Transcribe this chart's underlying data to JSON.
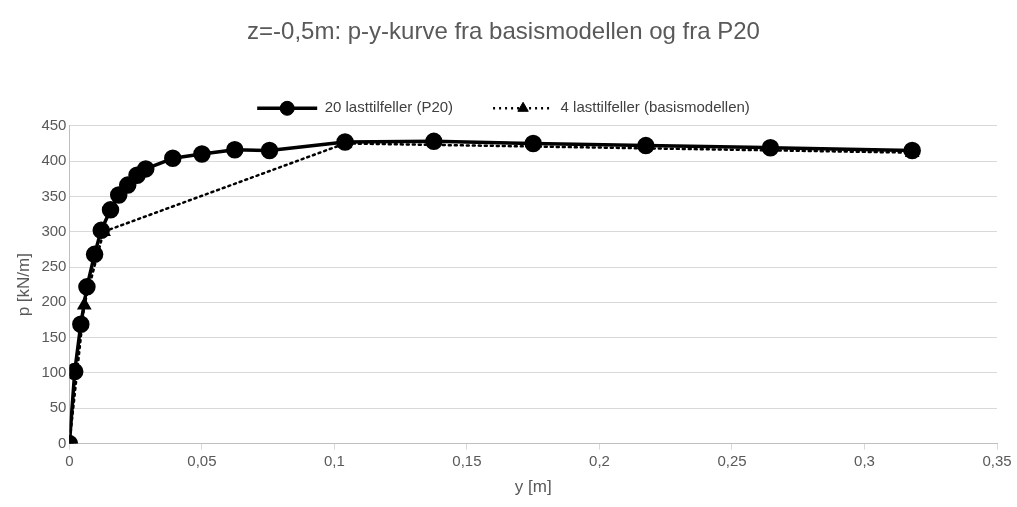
{
  "chart_data": {
    "type": "line",
    "title": "z=-0,5m: p-y-kurve fra basismodellen og fra P20",
    "xlabel": "y [m]",
    "ylabel": "p [kN/m]",
    "xlim": [
      0,
      0.35
    ],
    "xticks": [
      {
        "value": 0,
        "label": "0"
      },
      {
        "value": 0.05,
        "label": "0,05"
      },
      {
        "value": 0.1,
        "label": "0,1"
      },
      {
        "value": 0.15,
        "label": "0,15"
      },
      {
        "value": 0.2,
        "label": "0,2"
      },
      {
        "value": 0.25,
        "label": "0,25"
      },
      {
        "value": 0.3,
        "label": "0,3"
      },
      {
        "value": 0.35,
        "label": "0,35"
      }
    ],
    "ylim": [
      0,
      450
    ],
    "yticks": [
      0,
      50,
      100,
      150,
      200,
      250,
      300,
      350,
      400,
      450
    ],
    "grid": "y",
    "legend": "top",
    "series": [
      {
        "name": "20 lasttilfeller (P20)",
        "color": "#000000",
        "marker": "circle",
        "line_style": "solid",
        "x": [
          0,
          0.002,
          0.0043,
          0.0066,
          0.0095,
          0.012,
          0.0155,
          0.0186,
          0.022,
          0.0255,
          0.0288,
          0.039,
          0.05,
          0.0624,
          0.0755,
          0.104,
          0.1375,
          0.175,
          0.2175,
          0.2645,
          0.318
        ],
        "values": [
          0,
          102,
          169,
          222,
          268,
          302,
          331,
          352,
          366,
          380,
          389,
          404,
          410,
          416,
          415,
          427,
          428,
          425,
          422,
          419,
          415
        ]
      },
      {
        "name": "4 lasttilfeller (basismodellen)",
        "color": "#000000",
        "marker": "triangle",
        "line_style": "dotted",
        "x": [
          0,
          0.0056,
          0.0129,
          0.104,
          0.318
        ],
        "values": [
          0,
          196,
          300,
          425,
          412
        ]
      }
    ]
  }
}
